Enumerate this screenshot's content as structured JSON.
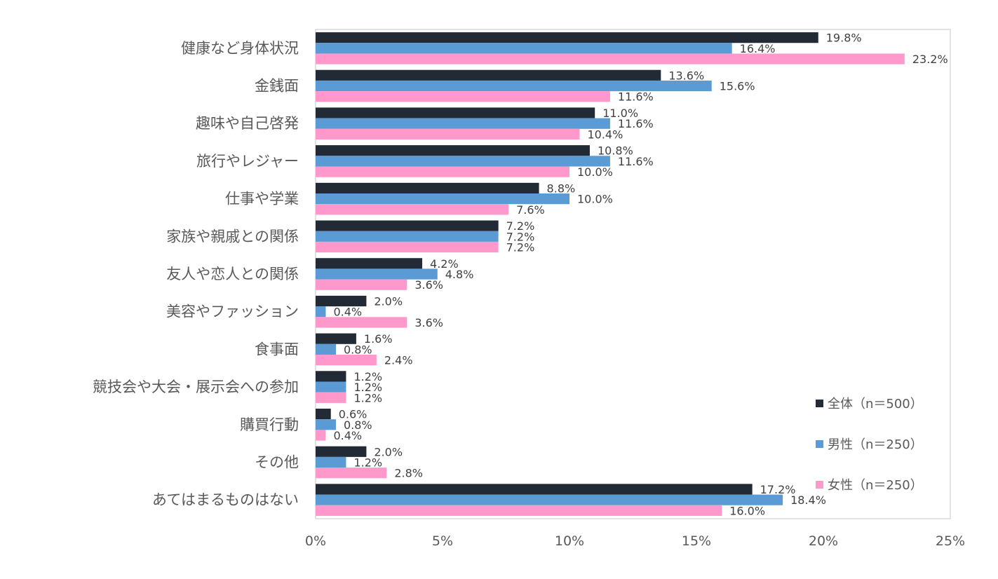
{
  "chart_data": {
    "type": "bar",
    "orientation": "horizontal",
    "categories": [
      "健康など身体状況",
      "金銭面",
      "趣味や自己啓発",
      "旅行やレジャー",
      "仕事や学業",
      "家族や親戚との関係",
      "友人や恋人との関係",
      "美容やファッション",
      "食事面",
      "競技会や大会・展示会への参加",
      "購買行動",
      "その他",
      "あてはまるものはない"
    ],
    "series": [
      {
        "name": "全体（n＝500）",
        "color": "#222A35",
        "values": [
          19.8,
          13.6,
          11.0,
          10.8,
          8.8,
          7.2,
          4.2,
          2.0,
          1.6,
          1.2,
          0.6,
          2.0,
          17.2
        ]
      },
      {
        "name": "男性（n＝250）",
        "color": "#5B9BD5",
        "values": [
          16.4,
          15.6,
          11.6,
          11.6,
          10.0,
          7.2,
          4.8,
          0.4,
          0.8,
          1.2,
          0.8,
          1.2,
          18.4
        ]
      },
      {
        "name": "女性（n＝250）",
        "color": "#FF99CC",
        "values": [
          23.2,
          11.6,
          10.4,
          10.0,
          7.6,
          7.2,
          3.6,
          3.6,
          2.4,
          1.2,
          0.4,
          2.8,
          16.0
        ]
      }
    ],
    "xlim": [
      0,
      25
    ],
    "xticks": [
      "0%",
      "5%",
      "10%",
      "15%",
      "20%",
      "25%"
    ],
    "legend": "bottom-right",
    "grid": false,
    "title": "",
    "xlabel": "",
    "ylabel": ""
  }
}
